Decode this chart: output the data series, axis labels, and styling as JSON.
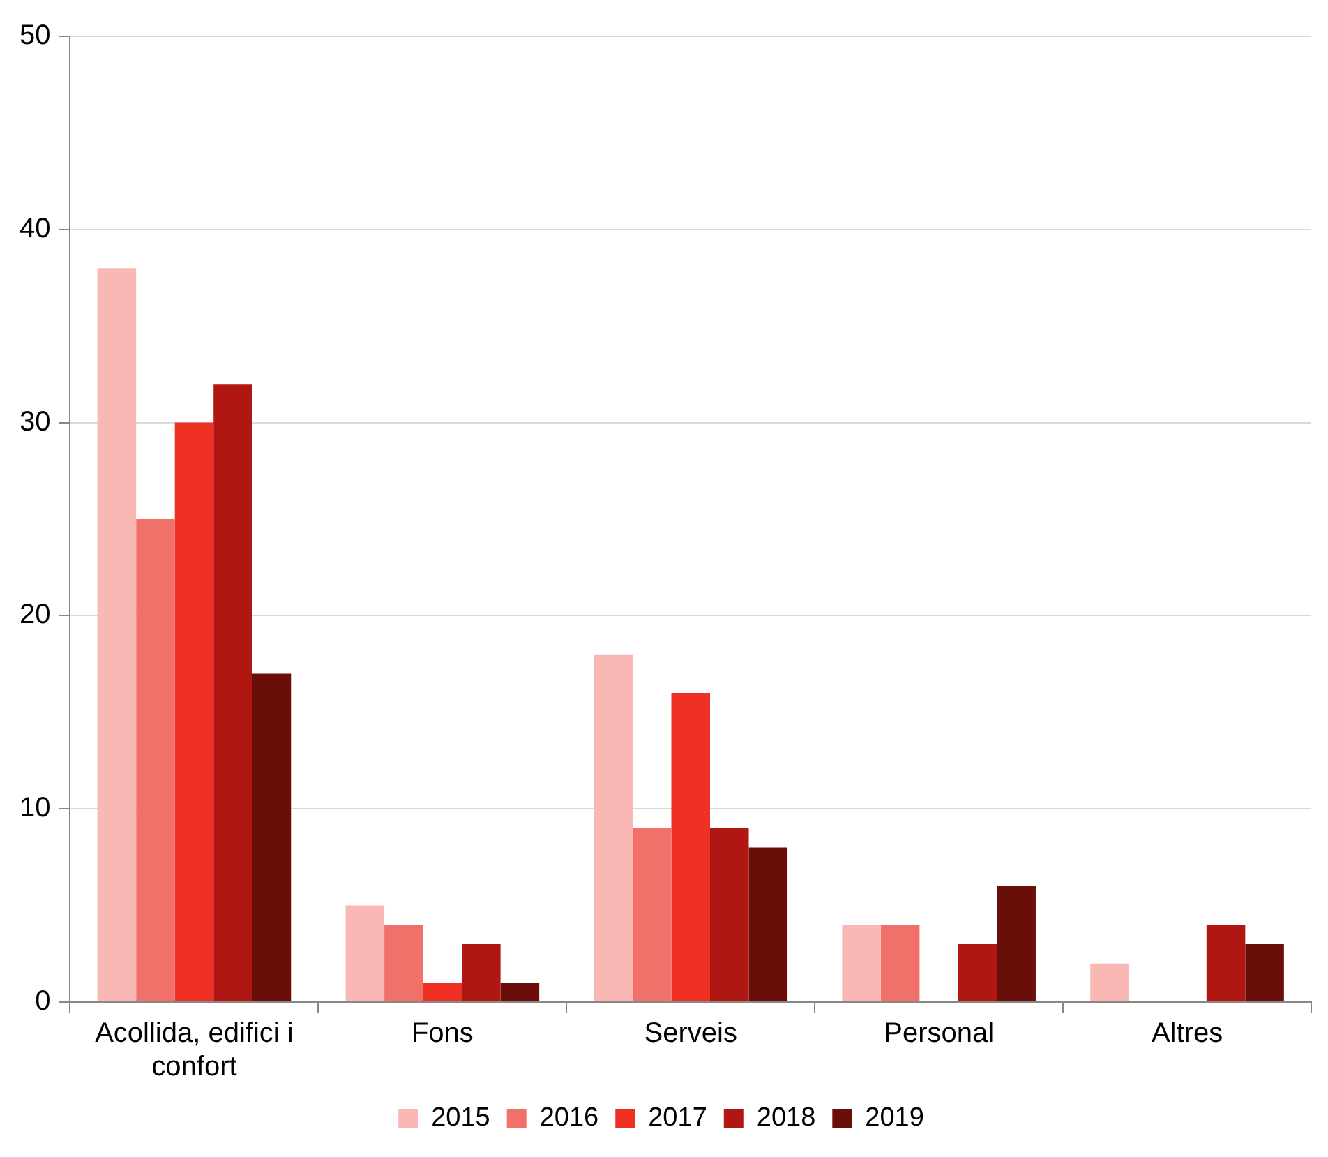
{
  "chart_data": {
    "type": "bar",
    "categories": [
      "Acollida, edifici i confort",
      "Fons",
      "Serveis",
      "Personal",
      "Altres"
    ],
    "series": [
      {
        "name": "2015",
        "color": "#f9b8b4",
        "values": [
          38,
          5,
          18,
          4,
          2
        ]
      },
      {
        "name": "2016",
        "color": "#f2706a",
        "values": [
          25,
          4,
          9,
          4,
          0
        ]
      },
      {
        "name": "2017",
        "color": "#ee3124",
        "values": [
          30,
          1,
          16,
          0,
          0
        ]
      },
      {
        "name": "2018",
        "color": "#b01712",
        "values": [
          32,
          3,
          9,
          3,
          4
        ]
      },
      {
        "name": "2019",
        "color": "#6a0e0a",
        "values": [
          17,
          1,
          8,
          6,
          3
        ]
      }
    ],
    "ylim": [
      0,
      50
    ],
    "yticks": [
      0,
      10,
      20,
      30,
      40,
      50
    ],
    "grid": "y",
    "legend": "bottom"
  }
}
